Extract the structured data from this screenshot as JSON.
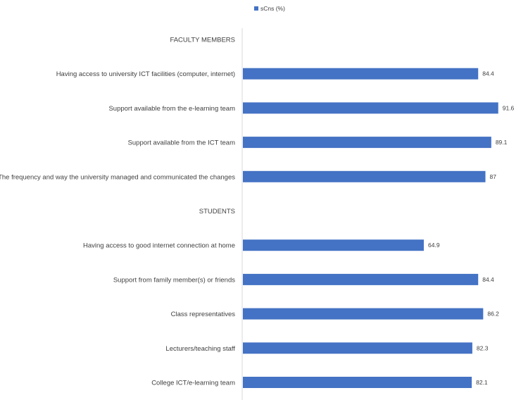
{
  "chart_data": {
    "type": "bar",
    "orientation": "horizontal",
    "legend": {
      "position": "top",
      "entries": [
        "sCns (%)"
      ]
    },
    "series": [
      {
        "name": "sCns (%)",
        "color": "#4472c4"
      }
    ],
    "categories": [
      "FACULTY MEMBERS",
      "Having access to university ICT facilities (computer, internet)",
      "Support available from the e-learning team",
      "Support available from the ICT team",
      "The frequency and way the university managed and communicated the changes",
      "STUDENTS",
      "Having access to good internet connection at home",
      "Support from family member(s) or friends",
      "Class representatives",
      "Lecturers/teaching staff",
      "College ICT/e-learning team"
    ],
    "values": [
      null,
      84.4,
      91.6,
      89.1,
      87,
      null,
      64.9,
      84.4,
      86.2,
      82.3,
      82.1
    ],
    "value_labels": [
      "",
      "84.4",
      "91.6",
      "89.1",
      "87",
      "",
      "64.9",
      "84.4",
      "86.2",
      "82.3",
      "82.1"
    ],
    "xlim": [
      0,
      100
    ],
    "grid": false
  }
}
